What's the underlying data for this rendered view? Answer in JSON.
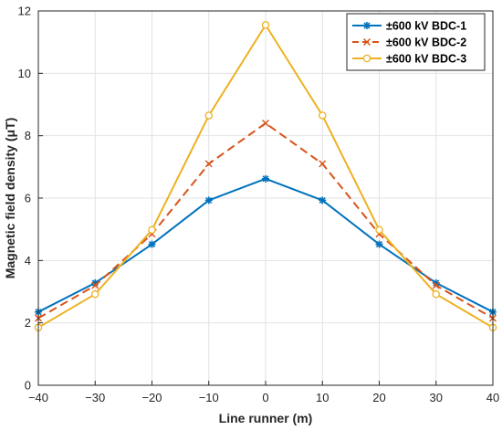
{
  "chart_data": {
    "type": "line",
    "xlabel": "Line runner (m)",
    "ylabel": "Magnetic field density (μT)",
    "x": [
      -40,
      -30,
      -20,
      -10,
      0,
      10,
      20,
      30,
      40
    ],
    "xticks": [
      "−40",
      "−30",
      "−20",
      "−10",
      "0",
      "10",
      "20",
      "30",
      "40"
    ],
    "xlim": [
      -40,
      40
    ],
    "ylim": [
      0,
      12
    ],
    "yticks": [
      "0",
      "2",
      "4",
      "6",
      "8",
      "10",
      "12"
    ],
    "grid": true,
    "legend_position": "top-right",
    "series": [
      {
        "name": "±600 kV BDC-1",
        "color": "#0072BD",
        "line_style": "solid",
        "marker": "asterisk",
        "values": [
          2.35,
          3.28,
          4.52,
          5.93,
          6.62,
          5.93,
          4.52,
          3.28,
          2.35
        ]
      },
      {
        "name": "±600 kV BDC-2",
        "color": "#D95319",
        "line_style": "dashed",
        "marker": "x",
        "values": [
          2.15,
          3.2,
          4.85,
          7.1,
          8.4,
          7.1,
          4.85,
          3.2,
          2.15
        ]
      },
      {
        "name": "±600 kV BDC-3",
        "color": "#EDB120",
        "line_style": "solid",
        "marker": "circle",
        "values": [
          1.85,
          2.92,
          4.98,
          8.65,
          11.55,
          8.65,
          4.98,
          2.92,
          1.85
        ]
      }
    ]
  }
}
